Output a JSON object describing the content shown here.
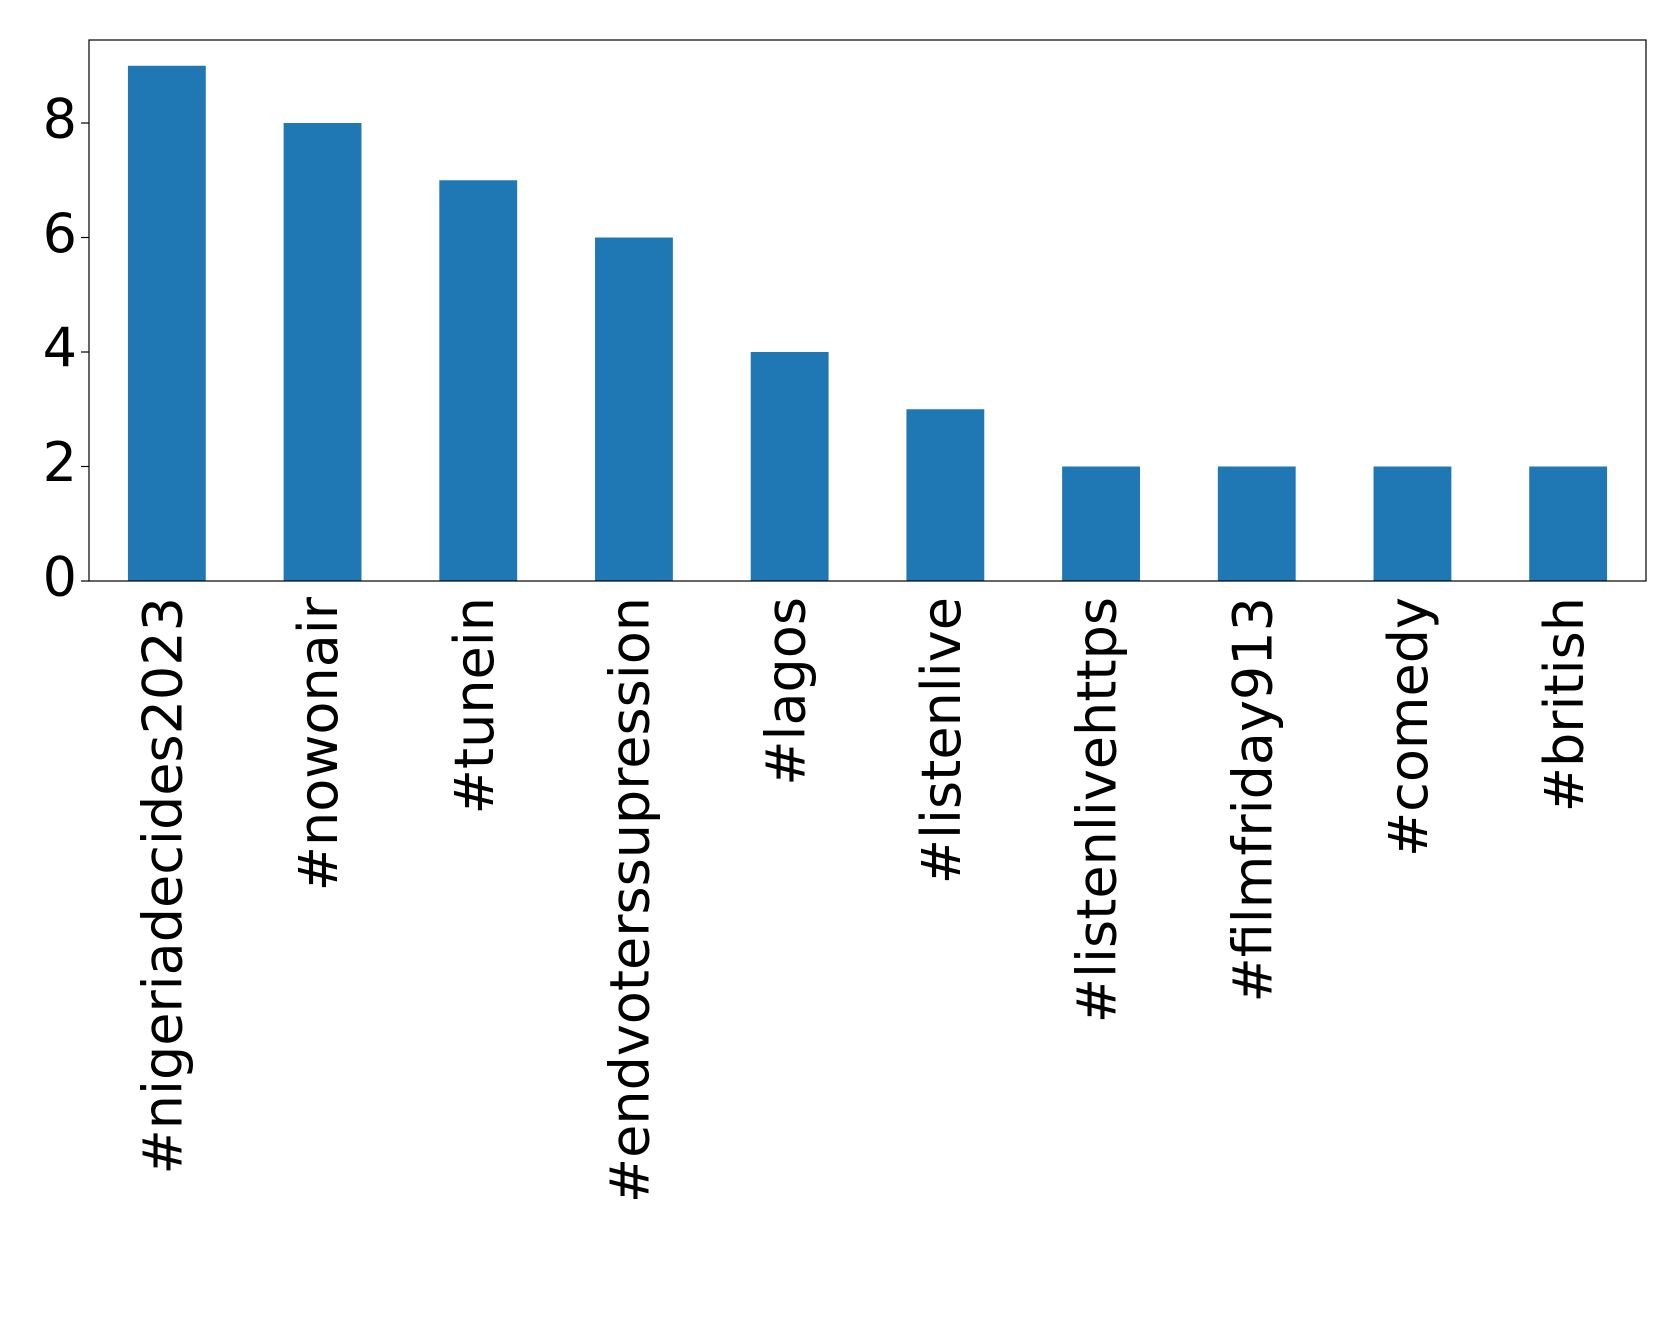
{
  "chart_data": {
    "type": "bar",
    "categories": [
      "#nigeriadecides2023",
      "#nowonair",
      "#tunein",
      "#endvoterssupression",
      "#lagos",
      "#listenlive",
      "#listenlivehttps",
      "#filmfriday913",
      "#comedy",
      "#british"
    ],
    "values": [
      9,
      8,
      7,
      6,
      4,
      3,
      2,
      2,
      2,
      2
    ],
    "color": "#1f77b4",
    "ylim": [
      0,
      9.45
    ],
    "yticks": [
      0,
      2,
      4,
      6,
      8
    ],
    "grid": false
  }
}
